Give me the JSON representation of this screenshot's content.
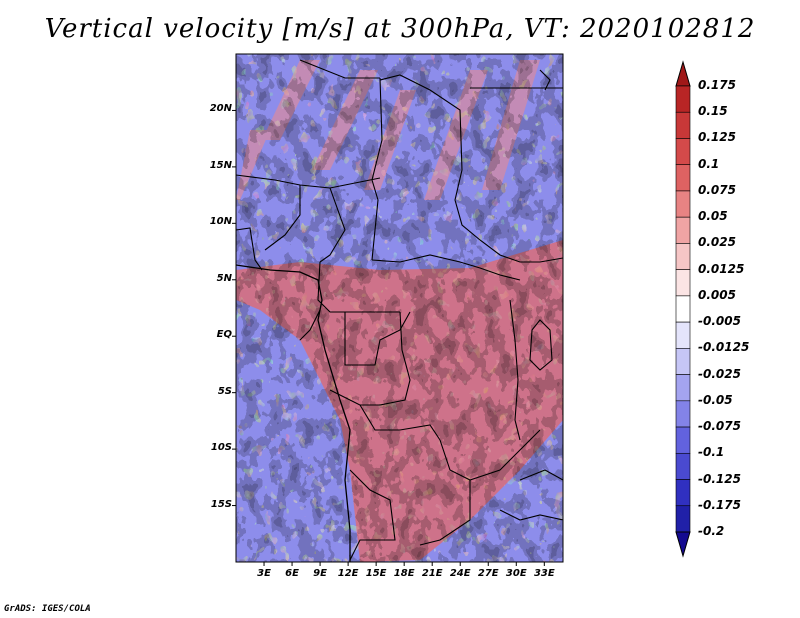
{
  "title": "Vertical velocity [m/s] at 300hPa, VT: 2020102812",
  "credit": "GrADS: IGES/COLA",
  "map": {
    "lat_labels": [
      "20N",
      "15N",
      "10N",
      "5N",
      "EQ",
      "5S",
      "10S",
      "15S"
    ],
    "lat_values": [
      20,
      15,
      10,
      5,
      0,
      -5,
      -10,
      -15
    ],
    "lon_labels": [
      "3E",
      "6E",
      "9E",
      "12E",
      "15E",
      "18E",
      "21E",
      "24E",
      "27E",
      "30E",
      "33E"
    ],
    "lon_values": [
      3,
      6,
      9,
      12,
      15,
      18,
      21,
      24,
      27,
      30,
      33
    ],
    "lat_range": [
      -20,
      25
    ],
    "lon_range": [
      0,
      35
    ],
    "field": "vertical velocity",
    "colors": {
      "positive": "#e06060",
      "negative": "#6a6ae0",
      "border": "#000000"
    }
  },
  "colorbar": {
    "labels": [
      "0.175",
      "0.15",
      "0.125",
      "0.1",
      "0.075",
      "0.05",
      "0.025",
      "0.0125",
      "0.005",
      "-0.005",
      "-0.0125",
      "-0.025",
      "-0.05",
      "-0.075",
      "-0.1",
      "-0.125",
      "-0.175",
      "-0.2"
    ],
    "colors": [
      "#a01818",
      "#b82525",
      "#c83838",
      "#d44a4a",
      "#de6262",
      "#e88383",
      "#f0a4a4",
      "#f6c6c6",
      "#fbe4e4",
      "#ffffff",
      "#e4e4fb",
      "#c6c6f6",
      "#a4a4f0",
      "#8383e8",
      "#6262de",
      "#4a4ad0",
      "#3030c0",
      "#2020a8",
      "#140a90"
    ]
  }
}
